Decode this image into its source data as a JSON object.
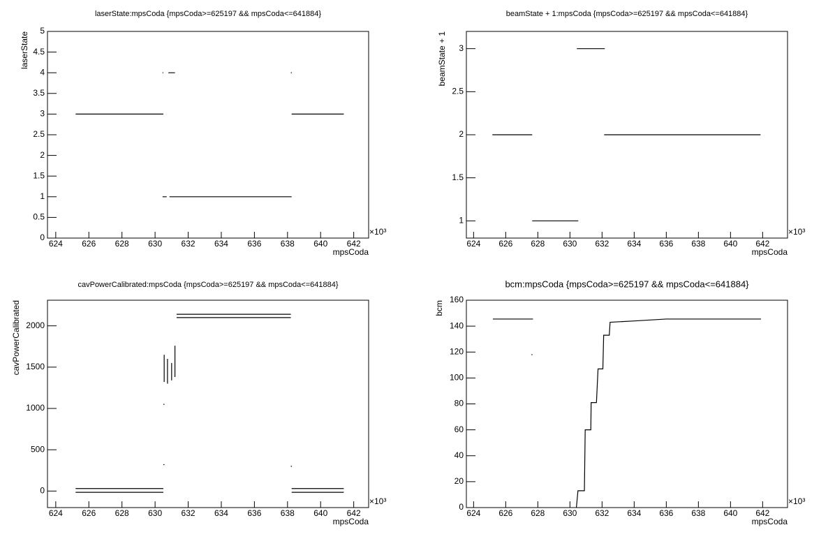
{
  "chart_data": [
    {
      "type": "line",
      "title": "laserState:mpsCoda {mpsCoda>=625197 && mpsCoda<=641884}",
      "x_label": "mpsCoda",
      "y_label": "laserState",
      "x_exponent": "×10³",
      "xlim": [
        623.5,
        642.9
      ],
      "ylim": [
        0,
        5
      ],
      "xticks": [
        624,
        626,
        628,
        630,
        632,
        634,
        636,
        638,
        640,
        642
      ],
      "yticks": [
        0,
        0.5,
        1,
        1.5,
        2,
        2.5,
        3,
        3.5,
        4,
        4.5,
        5
      ],
      "series": [
        {
          "color": "#000000",
          "x": [
            625.2,
            630.5,
            null,
            630.45,
            630.7,
            null,
            630.87,
            638.25,
            null,
            638.25,
            641.4,
            null,
            630.45,
            630.5,
            null,
            630.8,
            631.2,
            null,
            638.2
          ],
          "values": [
            3,
            3,
            null,
            1,
            1,
            null,
            1,
            1,
            null,
            3,
            3,
            null,
            4,
            4,
            null,
            4,
            4,
            null,
            4
          ]
        }
      ]
    },
    {
      "type": "line",
      "title": "beamState + 1:mpsCoda {mpsCoda>=625197 && mpsCoda<=641884}",
      "x_label": "mpsCoda",
      "y_label": "beamState + 1",
      "x_exponent": "×10³",
      "xlim": [
        623.55,
        643.55
      ],
      "ylim": [
        0.8,
        3.2
      ],
      "xticks": [
        624,
        626,
        628,
        630,
        632,
        634,
        636,
        638,
        640,
        642
      ],
      "yticks": [
        1,
        1.5,
        2,
        2.5,
        3
      ],
      "series": [
        {
          "color": "#000000",
          "x": [
            625.17,
            627.65,
            null,
            627.65,
            630.52,
            null,
            630.43,
            632.17,
            null,
            632.13,
            641.87
          ],
          "values": [
            2,
            2,
            null,
            1,
            1,
            null,
            3,
            3,
            null,
            2,
            2
          ]
        }
      ]
    },
    {
      "type": "line",
      "title": "cavPowerCalibrated:mpsCoda {mpsCoda>=625197 && mpsCoda<=641884}",
      "x_label": "mpsCoda",
      "y_label": "cavPowerCalibrated",
      "x_exponent": "×10³",
      "xlim": [
        623.5,
        642.9
      ],
      "ylim": [
        -200,
        2310
      ],
      "xticks": [
        624,
        626,
        628,
        630,
        632,
        634,
        636,
        638,
        640,
        642
      ],
      "yticks": [
        0,
        500,
        1000,
        1500,
        2000
      ],
      "series": [
        {
          "color": "#000000",
          "x": [
            625.2,
            630.5,
            null,
            625.2,
            630.5,
            null,
            630.55,
            630.55,
            null,
            630.75,
            630.75,
            null,
            631.0,
            631.0,
            null,
            631.2,
            631.2,
            null,
            631.3,
            638.2,
            null,
            631.3,
            638.2,
            null,
            638.25,
            641.4,
            null,
            638.25,
            641.4,
            null,
            630.5,
            null,
            630.5,
            null,
            638.2
          ],
          "values": [
            30,
            30,
            null,
            -15,
            -15,
            null,
            1320,
            1650,
            null,
            1300,
            1600,
            null,
            1340,
            1550,
            null,
            1380,
            1760,
            null,
            2140,
            2140,
            null,
            2100,
            2100,
            null,
            30,
            30,
            null,
            -15,
            -15,
            null,
            1050,
            null,
            320,
            null,
            300
          ]
        }
      ]
    },
    {
      "type": "line",
      "title": "bcm:mpsCoda {mpsCoda>=625197 && mpsCoda<=641884}",
      "x_label": "mpsCoda",
      "y_label": "bcm",
      "x_exponent": "×10³",
      "xlim": [
        623.55,
        643.55
      ],
      "ylim": [
        0,
        160
      ],
      "xticks": [
        624,
        626,
        628,
        630,
        632,
        634,
        636,
        638,
        640,
        642
      ],
      "yticks": [
        0,
        20,
        40,
        60,
        80,
        100,
        120,
        140,
        160
      ],
      "series": [
        {
          "color": "#000000",
          "x": [
            625.2,
            627.7,
            null,
            627.6,
            null,
            630.4,
            630.5,
            630.9,
            630.95,
            631.3,
            631.32,
            631.65,
            631.75,
            632.05,
            632.1,
            632.45,
            632.5,
            634,
            636,
            641.9
          ],
          "values": [
            145.5,
            145.5,
            null,
            118,
            null,
            0,
            13,
            13,
            60,
            60,
            81,
            81,
            107,
            107,
            133,
            133,
            143,
            144,
            145.5,
            145.5
          ]
        }
      ]
    }
  ]
}
